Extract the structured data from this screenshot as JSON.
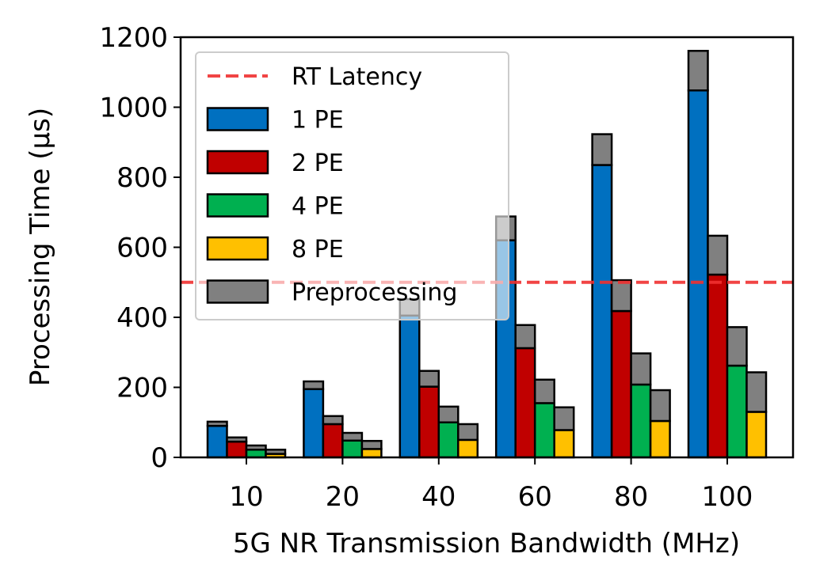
{
  "chart_data": {
    "type": "bar",
    "stacked": true,
    "xlabel": "5G NR Transmission Bandwidth (MHz)",
    "ylabel": "Processing Time (μs)",
    "ylim": [
      0,
      1200
    ],
    "yticks": [
      0,
      200,
      400,
      600,
      800,
      1000,
      1200
    ],
    "categories": [
      "10",
      "20",
      "40",
      "60",
      "80",
      "100"
    ],
    "series": [
      {
        "name": "1 PE",
        "color": "#0070C0",
        "compute": [
          90,
          195,
          405,
          620,
          835,
          1048
        ],
        "preprocessing": [
          12,
          22,
          47,
          68,
          88,
          113
        ]
      },
      {
        "name": "2 PE",
        "color": "#C00000",
        "compute": [
          45,
          95,
          202,
          312,
          418,
          522
        ],
        "preprocessing": [
          12,
          23,
          45,
          66,
          88,
          111
        ]
      },
      {
        "name": "4 PE",
        "color": "#00B050",
        "compute": [
          22,
          48,
          100,
          155,
          208,
          262
        ],
        "preprocessing": [
          12,
          22,
          45,
          67,
          89,
          110
        ]
      },
      {
        "name": "8 PE",
        "color": "#FFC000",
        "compute": [
          10,
          24,
          50,
          78,
          104,
          130
        ],
        "preprocessing": [
          12,
          23,
          45,
          65,
          88,
          113
        ]
      }
    ],
    "stack_component": {
      "name": "Preprocessing",
      "color": "#808080"
    },
    "reference_line": {
      "name": "RT Latency",
      "value": 500,
      "color": "#F03030",
      "style": "dashed"
    },
    "legend": {
      "position": "upper-left",
      "entries": [
        "RT Latency",
        "1 PE",
        "2 PE",
        "4 PE",
        "8 PE",
        "Preprocessing"
      ]
    }
  }
}
